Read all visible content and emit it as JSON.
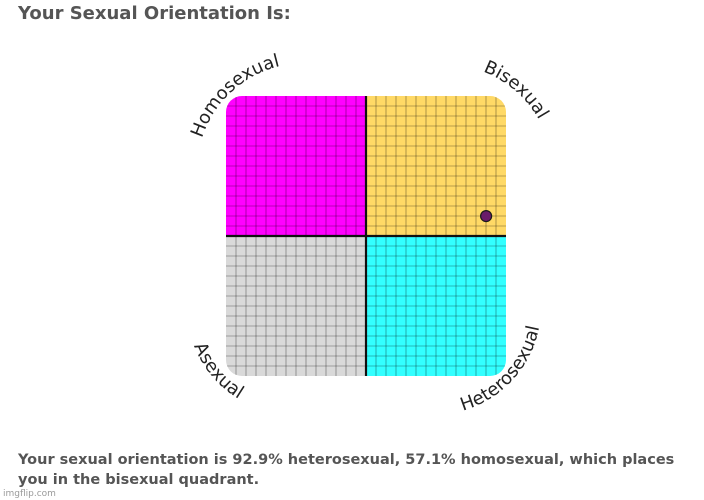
{
  "page": {
    "title": "Your Sexual Orientation Is:",
    "result_text": "Your sexual orientation is 92.9% heterosexual, 57.1% homosexual, which places you in the bisexual quadrant.",
    "watermark": "imgflip.com"
  },
  "chart_data": {
    "type": "scatter",
    "grid": true,
    "grid_divisions": 14,
    "quadrants": [
      {
        "name": "Homosexual",
        "position": "top-left",
        "color": "#ff00ff"
      },
      {
        "name": "Bisexual",
        "position": "top-right",
        "color": "#ffd966"
      },
      {
        "name": "Asexual",
        "position": "bottom-left",
        "color": "#d9d9d9"
      },
      {
        "name": "Heterosexual",
        "position": "bottom-right",
        "color": "#33ffff"
      }
    ],
    "axes": {
      "x": {
        "quantity": "heterosexual",
        "unit": "%",
        "range": [
          0,
          100
        ]
      },
      "y": {
        "quantity": "homosexual",
        "unit": "%",
        "range": [
          0,
          100
        ]
      }
    },
    "points": [
      {
        "x": 92.9,
        "y": 57.1,
        "color": "#6a1b6a"
      }
    ],
    "colors": {
      "grid_line": "#000000",
      "divider": "#111111",
      "point_stroke": "#1a1a1a"
    }
  }
}
